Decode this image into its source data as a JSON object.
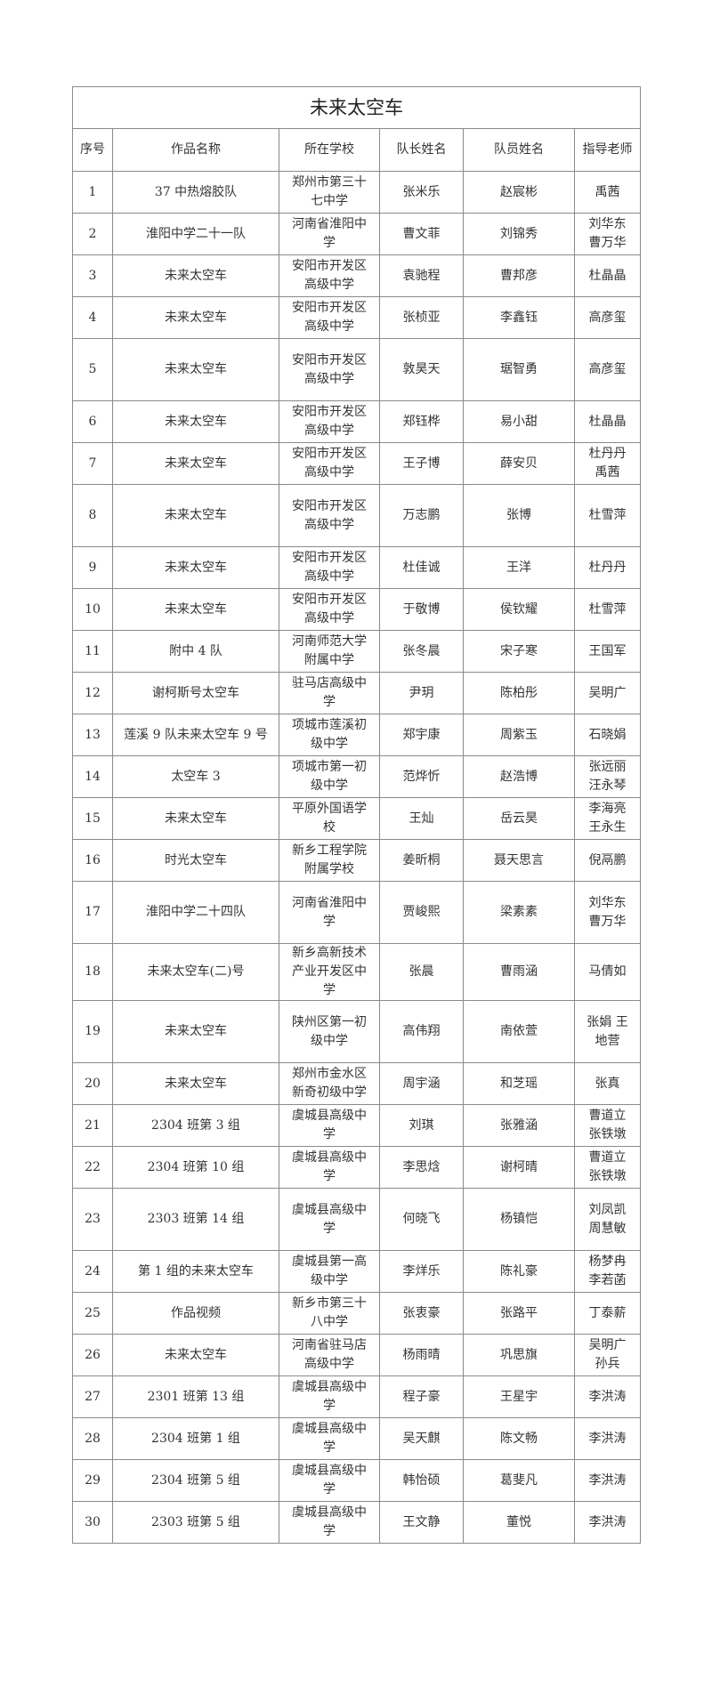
{
  "title": "未来太空车",
  "headers": [
    "序号",
    "作品名称",
    "所在学校",
    "队长姓名",
    "队员姓名",
    "指导老师"
  ],
  "rows": [
    [
      "1",
      "37 中热熔胶队",
      "郑州市第三十七中学",
      "张米乐",
      "赵宸彬",
      "禹茜"
    ],
    [
      "2",
      "淮阳中学二十一队",
      "河南省淮阳中学",
      "曹文菲",
      "刘锦秀",
      "刘华东曹万华"
    ],
    [
      "3",
      "未来太空车",
      "安阳市开发区高级中学",
      "袁驰程",
      "曹邦彦",
      "杜晶晶"
    ],
    [
      "4",
      "未来太空车",
      "安阳市开发区高级中学",
      "张桢亚",
      "李鑫钰",
      "高彦玺"
    ],
    [
      "5",
      "未来太空车",
      "安阳市开发区高级中学",
      "敦昊天",
      "琚智勇",
      "高彦玺"
    ],
    [
      "6",
      "未来太空车",
      "安阳市开发区高级中学",
      "郑钰桦",
      "易小甜",
      "杜晶晶"
    ],
    [
      "7",
      "未来太空车",
      "安阳市开发区高级中学",
      "王子博",
      "薛安贝",
      "杜丹丹禹茜"
    ],
    [
      "8",
      "未来太空车",
      "安阳市开发区高级中学",
      "万志鹏",
      "张博",
      "杜雪萍"
    ],
    [
      "9",
      "未来太空车",
      "安阳市开发区高级中学",
      "杜佳诚",
      "王洋",
      "杜丹丹"
    ],
    [
      "10",
      "未来太空车",
      "安阳市开发区高级中学",
      "于敬博",
      "侯钦耀",
      "杜雪萍"
    ],
    [
      "11",
      "附中 4 队",
      "河南师范大学附属中学",
      "张冬晨",
      "宋子寒",
      "王国军"
    ],
    [
      "12",
      "谢柯斯号太空车",
      "驻马店高级中学",
      "尹玥",
      "陈柏彤",
      "吴明广"
    ],
    [
      "13",
      "莲溪 9 队未来太空车 9 号",
      "项城市莲溪初级中学",
      "郑宇康",
      "周紫玉",
      "石晓娟"
    ],
    [
      "14",
      "太空车 3",
      "项城市第一初级中学",
      "范烨忻",
      "赵浩博",
      "张远丽汪永琴"
    ],
    [
      "15",
      "未来太空车",
      "平原外国语学校",
      "王灿",
      "岳云昊",
      "李海亮王永生"
    ],
    [
      "16",
      "时光太空车",
      "新乡工程学院附属学校",
      "姜昕桐",
      "聂天思言",
      "倪鬲鹏"
    ],
    [
      "17",
      "淮阳中学二十四队",
      "河南省淮阳中学",
      "贾峻熙",
      "梁素素",
      "刘华东曹万华"
    ],
    [
      "18",
      "未来太空车(二)号",
      "新乡高新技术产业开发区中学",
      "张晨",
      "曹雨涵",
      "马倩如"
    ],
    [
      "19",
      "未来太空车",
      "陕州区第一初级中学",
      "高伟翔",
      "南依萱",
      "张娟 王地营"
    ],
    [
      "20",
      "未来太空车",
      "郑州市金水区新奇初级中学",
      "周宇涵",
      "和芝瑶",
      "张真"
    ],
    [
      "21",
      "2304 班第 3 组",
      "虞城县高级中学",
      "刘琪",
      "张雅涵",
      "曹道立张铁墩"
    ],
    [
      "22",
      "2304 班第 10 组",
      "虞城县高级中学",
      "李思焓",
      "谢柯晴",
      "曹道立张铁墩"
    ],
    [
      "23",
      "2303 班第 14 组",
      "虞城县高级中学",
      "何晓飞",
      "杨镇恺",
      "刘凤凯周慧敏"
    ],
    [
      "24",
      "第 1 组的未来太空车",
      "虞城县第一高级中学",
      "李烊乐",
      "陈礼豪",
      "杨梦冉李若菡"
    ],
    [
      "25",
      "作品视频",
      "新乡市第三十八中学",
      "张衷豪",
      "张路平",
      "丁泰薪"
    ],
    [
      "26",
      "未来太空车",
      "河南省驻马店高级中学",
      "杨雨晴",
      "巩思旗",
      "吴明广孙兵"
    ],
    [
      "27",
      "2301 班第 13 组",
      "虞城县高级中学",
      "程子豪",
      "王星宇",
      "李洪涛"
    ],
    [
      "28",
      "2304 班第 1 组",
      "虞城县高级中学",
      "吴天麒",
      "陈文畅",
      "李洪涛"
    ],
    [
      "29",
      "2304 班第 5 组",
      "虞城县高级中学",
      "韩怡硕",
      "葛斐凡",
      "李洪涛"
    ],
    [
      "30",
      "2303 班第 5 组",
      "虞城县高级中学",
      "王文静",
      "董悦",
      "李洪涛"
    ]
  ]
}
